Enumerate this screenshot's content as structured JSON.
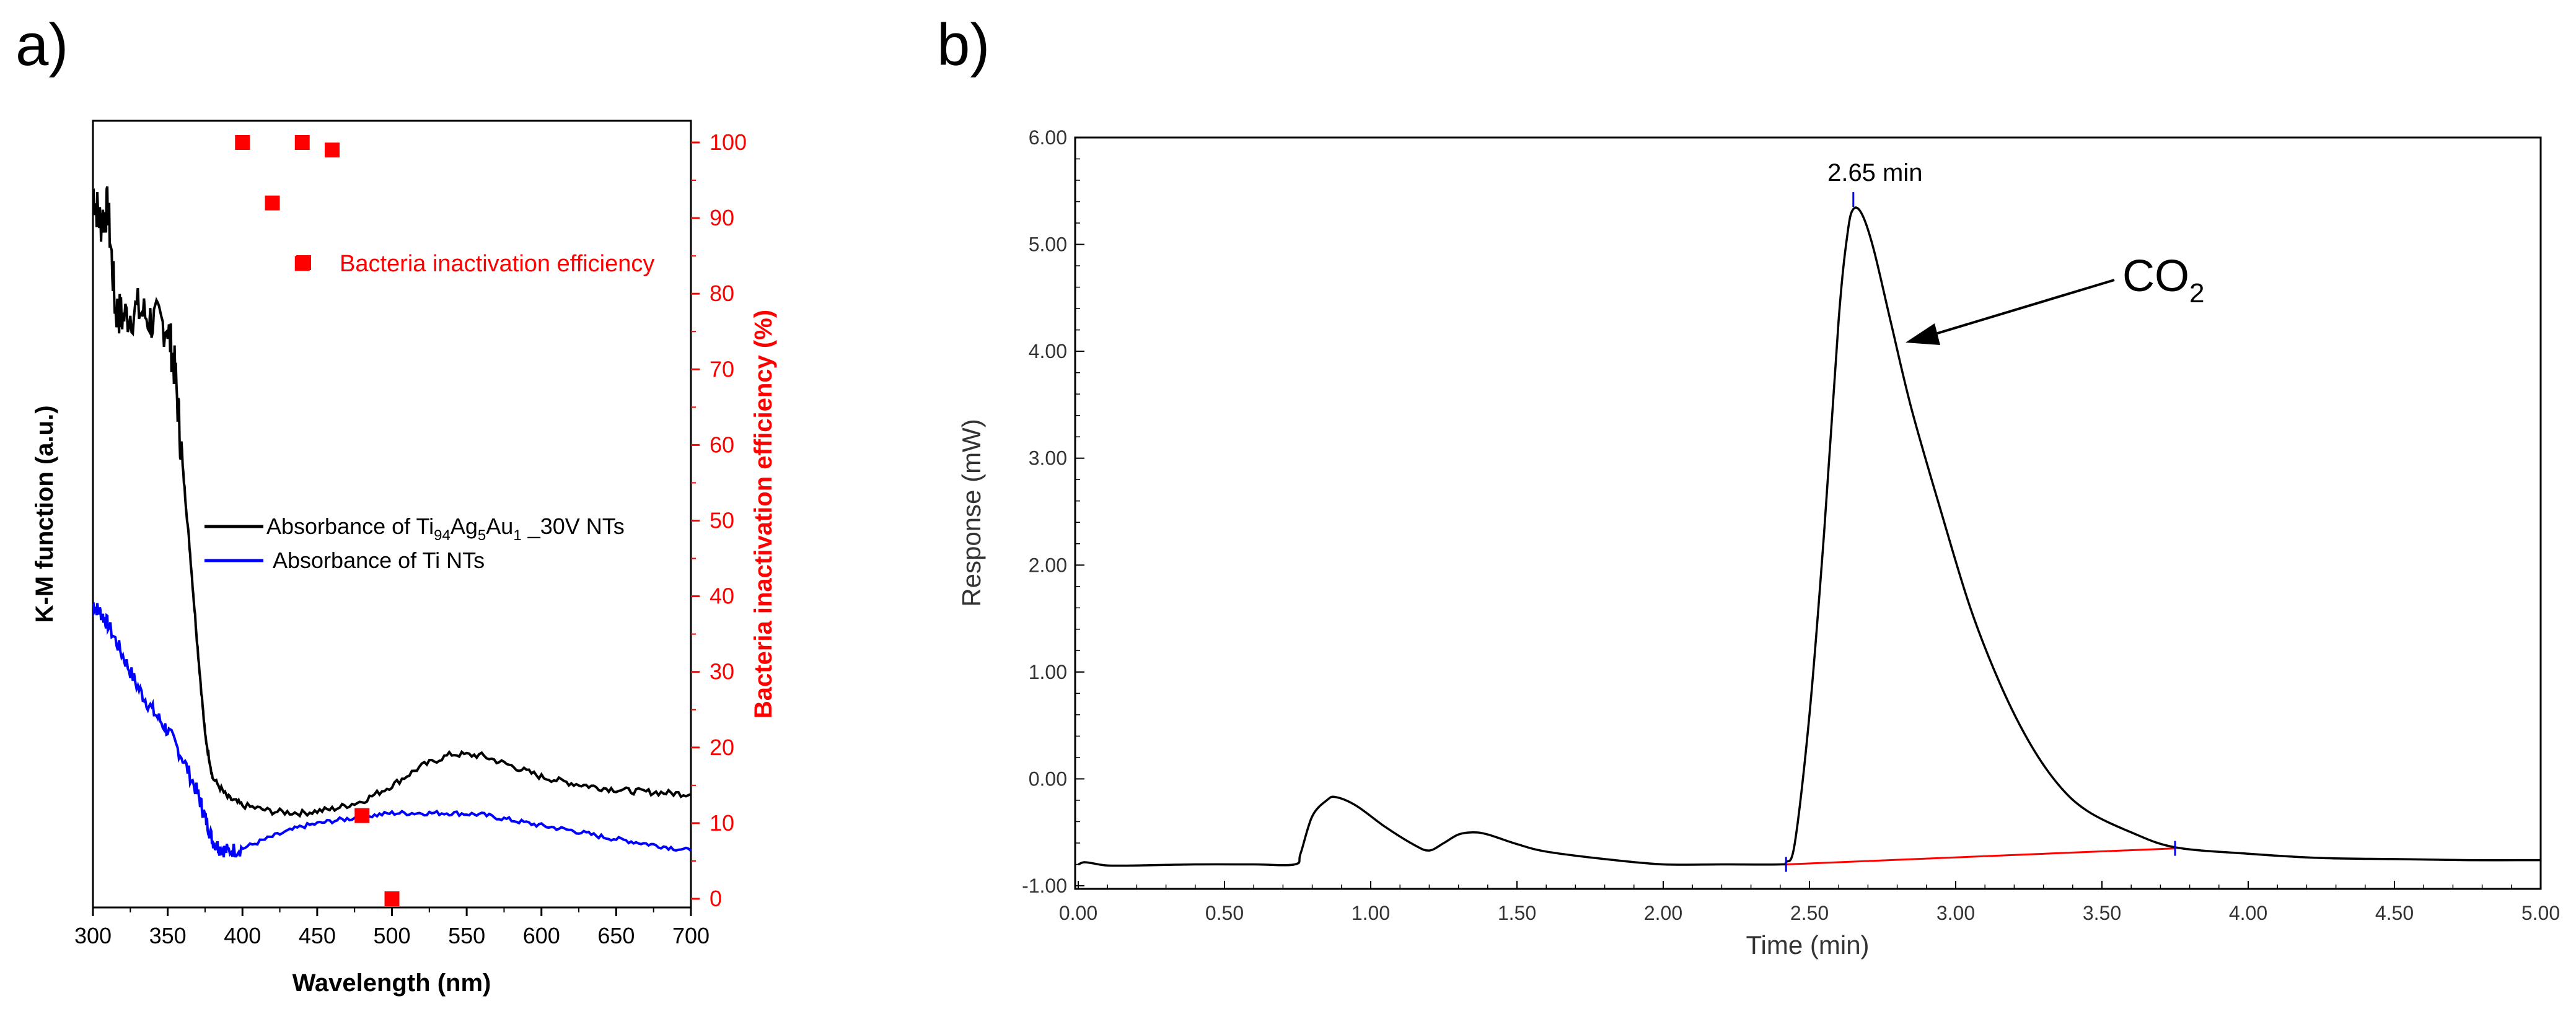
{
  "chart_data": [
    {
      "panel_label": "a)",
      "type": "line",
      "xlabel": "Wavelength (nm)",
      "ylabel": "K-M function (a.u.)",
      "y2label": "Bacteria inactivation efficiency (%)",
      "xlim": [
        300,
        700
      ],
      "y2lim": [
        0,
        100
      ],
      "xticks": [
        "300",
        "350",
        "400",
        "450",
        "500",
        "550",
        "600",
        "650",
        "700"
      ],
      "y2ticks": [
        "0",
        "10",
        "20",
        "30",
        "40",
        "50",
        "60",
        "70",
        "80",
        "90",
        "100"
      ],
      "legend": {
        "series1_prefix": "Absorbance of Ti",
        "sub1": "94",
        "mid1": "Ag",
        "sub2": "5",
        "mid2": "Au",
        "sub3": "1",
        "suffix1": " _30V NTs",
        "series2": "Absorbance of Ti NTs",
        "scatter": "Bacteria inactivation efficiency"
      },
      "series": [
        {
          "color": "#000000",
          "x": [
            300,
            305,
            310,
            315,
            320,
            330,
            340,
            350,
            355,
            360,
            365,
            370,
            375,
            380,
            390,
            400,
            420,
            440,
            460,
            480,
            500,
            520,
            540,
            560,
            580,
            600,
            620,
            640,
            660,
            680,
            700
          ],
          "y": [
            0.91,
            0.87,
            0.89,
            0.76,
            0.75,
            0.76,
            0.745,
            0.74,
            0.68,
            0.56,
            0.45,
            0.33,
            0.22,
            0.165,
            0.14,
            0.13,
            0.122,
            0.12,
            0.125,
            0.135,
            0.155,
            0.18,
            0.195,
            0.193,
            0.18,
            0.166,
            0.158,
            0.152,
            0.148,
            0.146,
            0.144
          ]
        },
        {
          "color": "#0000ff",
          "x": [
            300,
            305,
            310,
            320,
            330,
            340,
            350,
            360,
            370,
            375,
            380,
            385,
            390,
            400,
            420,
            440,
            460,
            480,
            500,
            520,
            540,
            560,
            580,
            600,
            620,
            640,
            660,
            680,
            700
          ],
          "y": [
            0.385,
            0.375,
            0.36,
            0.32,
            0.28,
            0.25,
            0.225,
            0.19,
            0.145,
            0.115,
            0.085,
            0.075,
            0.072,
            0.075,
            0.09,
            0.103,
            0.11,
            0.115,
            0.12,
            0.12,
            0.12,
            0.118,
            0.111,
            0.104,
            0.098,
            0.09,
            0.084,
            0.078,
            0.072
          ]
        }
      ],
      "scatter": {
        "color": "#ff0000",
        "x": [
          400,
          420,
          440,
          460,
          440,
          480,
          500
        ],
        "y": [
          100,
          92,
          100,
          99,
          84,
          11,
          0
        ]
      }
    },
    {
      "panel_label": "b)",
      "type": "line",
      "xlabel": "Time (min)",
      "ylabel": "Response (mW)",
      "xlim": [
        0,
        5
      ],
      "ylim": [
        -1,
        6
      ],
      "xticks": [
        "0.00",
        "0.50",
        "1.00",
        "1.50",
        "2.00",
        "2.50",
        "3.00",
        "3.50",
        "4.00",
        "4.50",
        "5.00"
      ],
      "yticks": [
        "-1.00",
        "0.00",
        "1.00",
        "2.00",
        "3.00",
        "4.00",
        "5.00",
        "6.00"
      ],
      "peak_label": "2.65 min",
      "peak_time": 2.65,
      "co2_main": "CO",
      "co2_sub": "2",
      "series": [
        {
          "color": "#000000",
          "x": [
            0.0,
            0.02,
            0.05,
            0.1,
            0.2,
            0.4,
            0.6,
            0.74,
            0.76,
            0.8,
            0.85,
            0.88,
            0.95,
            1.05,
            1.15,
            1.2,
            1.25,
            1.3,
            1.35,
            1.4,
            1.5,
            1.6,
            1.8,
            2.0,
            2.2,
            2.4,
            2.42,
            2.45,
            2.5,
            2.55,
            2.6,
            2.63,
            2.65,
            2.68,
            2.72,
            2.78,
            2.85,
            2.95,
            3.05,
            3.15,
            3.25,
            3.35,
            3.45,
            3.6,
            3.75,
            4.0,
            4.25,
            4.5,
            4.75,
            5.0
          ],
          "y": [
            -0.8,
            -0.78,
            -0.79,
            -0.81,
            -0.81,
            -0.8,
            -0.8,
            -0.8,
            -0.7,
            -0.35,
            -0.2,
            -0.17,
            -0.25,
            -0.45,
            -0.62,
            -0.67,
            -0.6,
            -0.52,
            -0.5,
            -0.52,
            -0.61,
            -0.68,
            -0.75,
            -0.8,
            -0.8,
            -0.8,
            -0.78,
            -0.6,
            0.6,
            2.3,
            4.3,
            5.1,
            5.33,
            5.28,
            4.95,
            4.25,
            3.45,
            2.5,
            1.6,
            0.9,
            0.35,
            -0.05,
            -0.3,
            -0.5,
            -0.64,
            -0.7,
            -0.74,
            -0.75,
            -0.76,
            -0.76
          ]
        }
      ],
      "baseline": {
        "color": "#ff0000",
        "x": [
          2.42,
          3.75
        ],
        "y": [
          -0.8,
          -0.65
        ]
      },
      "markers": {
        "color": "#0000ff",
        "x": [
          2.42,
          2.65,
          3.75
        ]
      }
    }
  ]
}
